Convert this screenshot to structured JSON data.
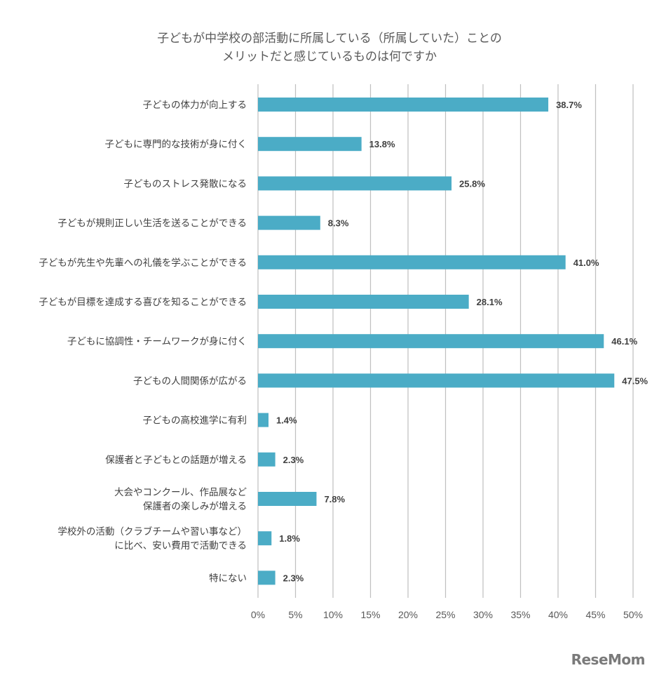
{
  "chart_data": {
    "type": "bar",
    "orientation": "horizontal",
    "title_lines": [
      "子どもが中学校の部活動に所属している（所属していた）ことの",
      "メリットだと感じているものは何ですか"
    ],
    "categories": [
      [
        "子どもの体力が向上する"
      ],
      [
        "子どもに専門的な技術が身に付く"
      ],
      [
        "子どものストレス発散になる"
      ],
      [
        "子どもが規則正しい生活を送ることができる"
      ],
      [
        "子どもが先生や先輩への礼儀を学ぶことができる"
      ],
      [
        "子どもが目標を達成する喜びを知ることができる"
      ],
      [
        "子どもに協調性・チームワークが身に付く"
      ],
      [
        "子どもの人間関係が広がる"
      ],
      [
        "子どもの高校進学に有利"
      ],
      [
        "保護者と子どもとの話題が増える"
      ],
      [
        "大会やコンクール、作品展など",
        "保護者の楽しみが増える"
      ],
      [
        "学校外の活動（クラブチームや習い事など）",
        "に比べ、安い費用で活動できる"
      ],
      [
        "特にない"
      ]
    ],
    "values": [
      38.7,
      13.8,
      25.8,
      8.3,
      41.0,
      28.1,
      46.1,
      47.5,
      1.4,
      2.3,
      7.8,
      1.8,
      2.3
    ],
    "value_labels": [
      "38.7%",
      "13.8%",
      "25.8%",
      "8.3%",
      "41.0%",
      "28.1%",
      "46.1%",
      "47.5%",
      "1.4%",
      "2.3%",
      "7.8%",
      "1.8%",
      "2.3%"
    ],
    "xlim": [
      0,
      50
    ],
    "xticks": [
      "0%",
      "5%",
      "10%",
      "15%",
      "20%",
      "25%",
      "30%",
      "35%",
      "40%",
      "45%",
      "50%"
    ],
    "grid": true,
    "bar_color": "#4BACC6",
    "grid_color": "#BFBFBF"
  },
  "logo": {
    "text": "ReseMom"
  }
}
